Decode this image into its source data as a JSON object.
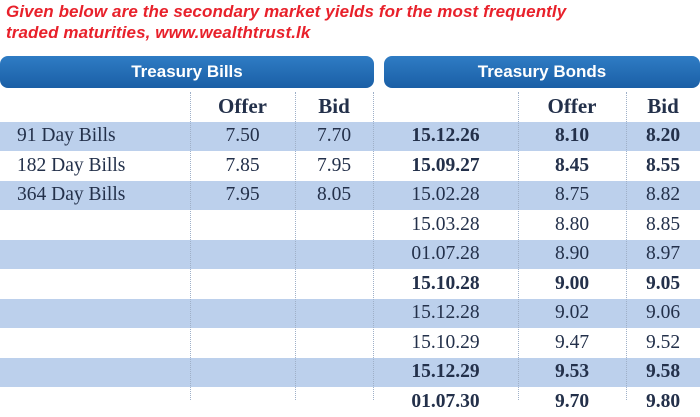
{
  "caption": {
    "line1": "Given below are the secondary market yields for the most frequently",
    "line2": "traded maturities, www.wealthtrust.lk"
  },
  "headers": {
    "bills": "Treasury Bills",
    "bonds": "Treasury Bonds"
  },
  "column_headers": {
    "bills_offer": "Offer",
    "bills_bid": "Bid",
    "bonds_offer": "Offer",
    "bonds_bid": "Bid"
  },
  "rows": [
    {
      "bill": "91 Day Bills",
      "bill_offer": "7.50",
      "bill_bid": "7.70",
      "bond": "15.12.26",
      "bond_offer": "8.10",
      "bond_bid": "8.20",
      "bold": true,
      "band": true
    },
    {
      "bill": "182 Day Bills",
      "bill_offer": "7.85",
      "bill_bid": "7.95",
      "bond": "15.09.27",
      "bond_offer": "8.45",
      "bond_bid": "8.55",
      "bold": true,
      "band": false
    },
    {
      "bill": "364 Day Bills",
      "bill_offer": "7.95",
      "bill_bid": "8.05",
      "bond": "15.02.28",
      "bond_offer": "8.75",
      "bond_bid": "8.82",
      "bold": false,
      "band": true
    },
    {
      "bill": "",
      "bill_offer": "",
      "bill_bid": "",
      "bond": "15.03.28",
      "bond_offer": "8.80",
      "bond_bid": "8.85",
      "bold": false,
      "band": false
    },
    {
      "bill": "",
      "bill_offer": "",
      "bill_bid": "",
      "bond": "01.07.28",
      "bond_offer": "8.90",
      "bond_bid": "8.97",
      "bold": false,
      "band": true
    },
    {
      "bill": "",
      "bill_offer": "",
      "bill_bid": "",
      "bond": "15.10.28",
      "bond_offer": "9.00",
      "bond_bid": "9.05",
      "bold": true,
      "band": false
    },
    {
      "bill": "",
      "bill_offer": "",
      "bill_bid": "",
      "bond": "15.12.28",
      "bond_offer": "9.02",
      "bond_bid": "9.06",
      "bold": false,
      "band": true
    },
    {
      "bill": "",
      "bill_offer": "",
      "bill_bid": "",
      "bond": "15.10.29",
      "bond_offer": "9.47",
      "bond_bid": "9.52",
      "bold": false,
      "band": false
    },
    {
      "bill": "",
      "bill_offer": "",
      "bill_bid": "",
      "bond": "15.12.29",
      "bond_offer": "9.53",
      "bond_bid": "9.58",
      "bold": true,
      "band": true
    },
    {
      "bill": "",
      "bill_offer": "",
      "bill_bid": "",
      "bond": "01.07.30",
      "bond_offer": "9.70",
      "bond_bid": "9.80",
      "bold": true,
      "band": false
    }
  ]
}
